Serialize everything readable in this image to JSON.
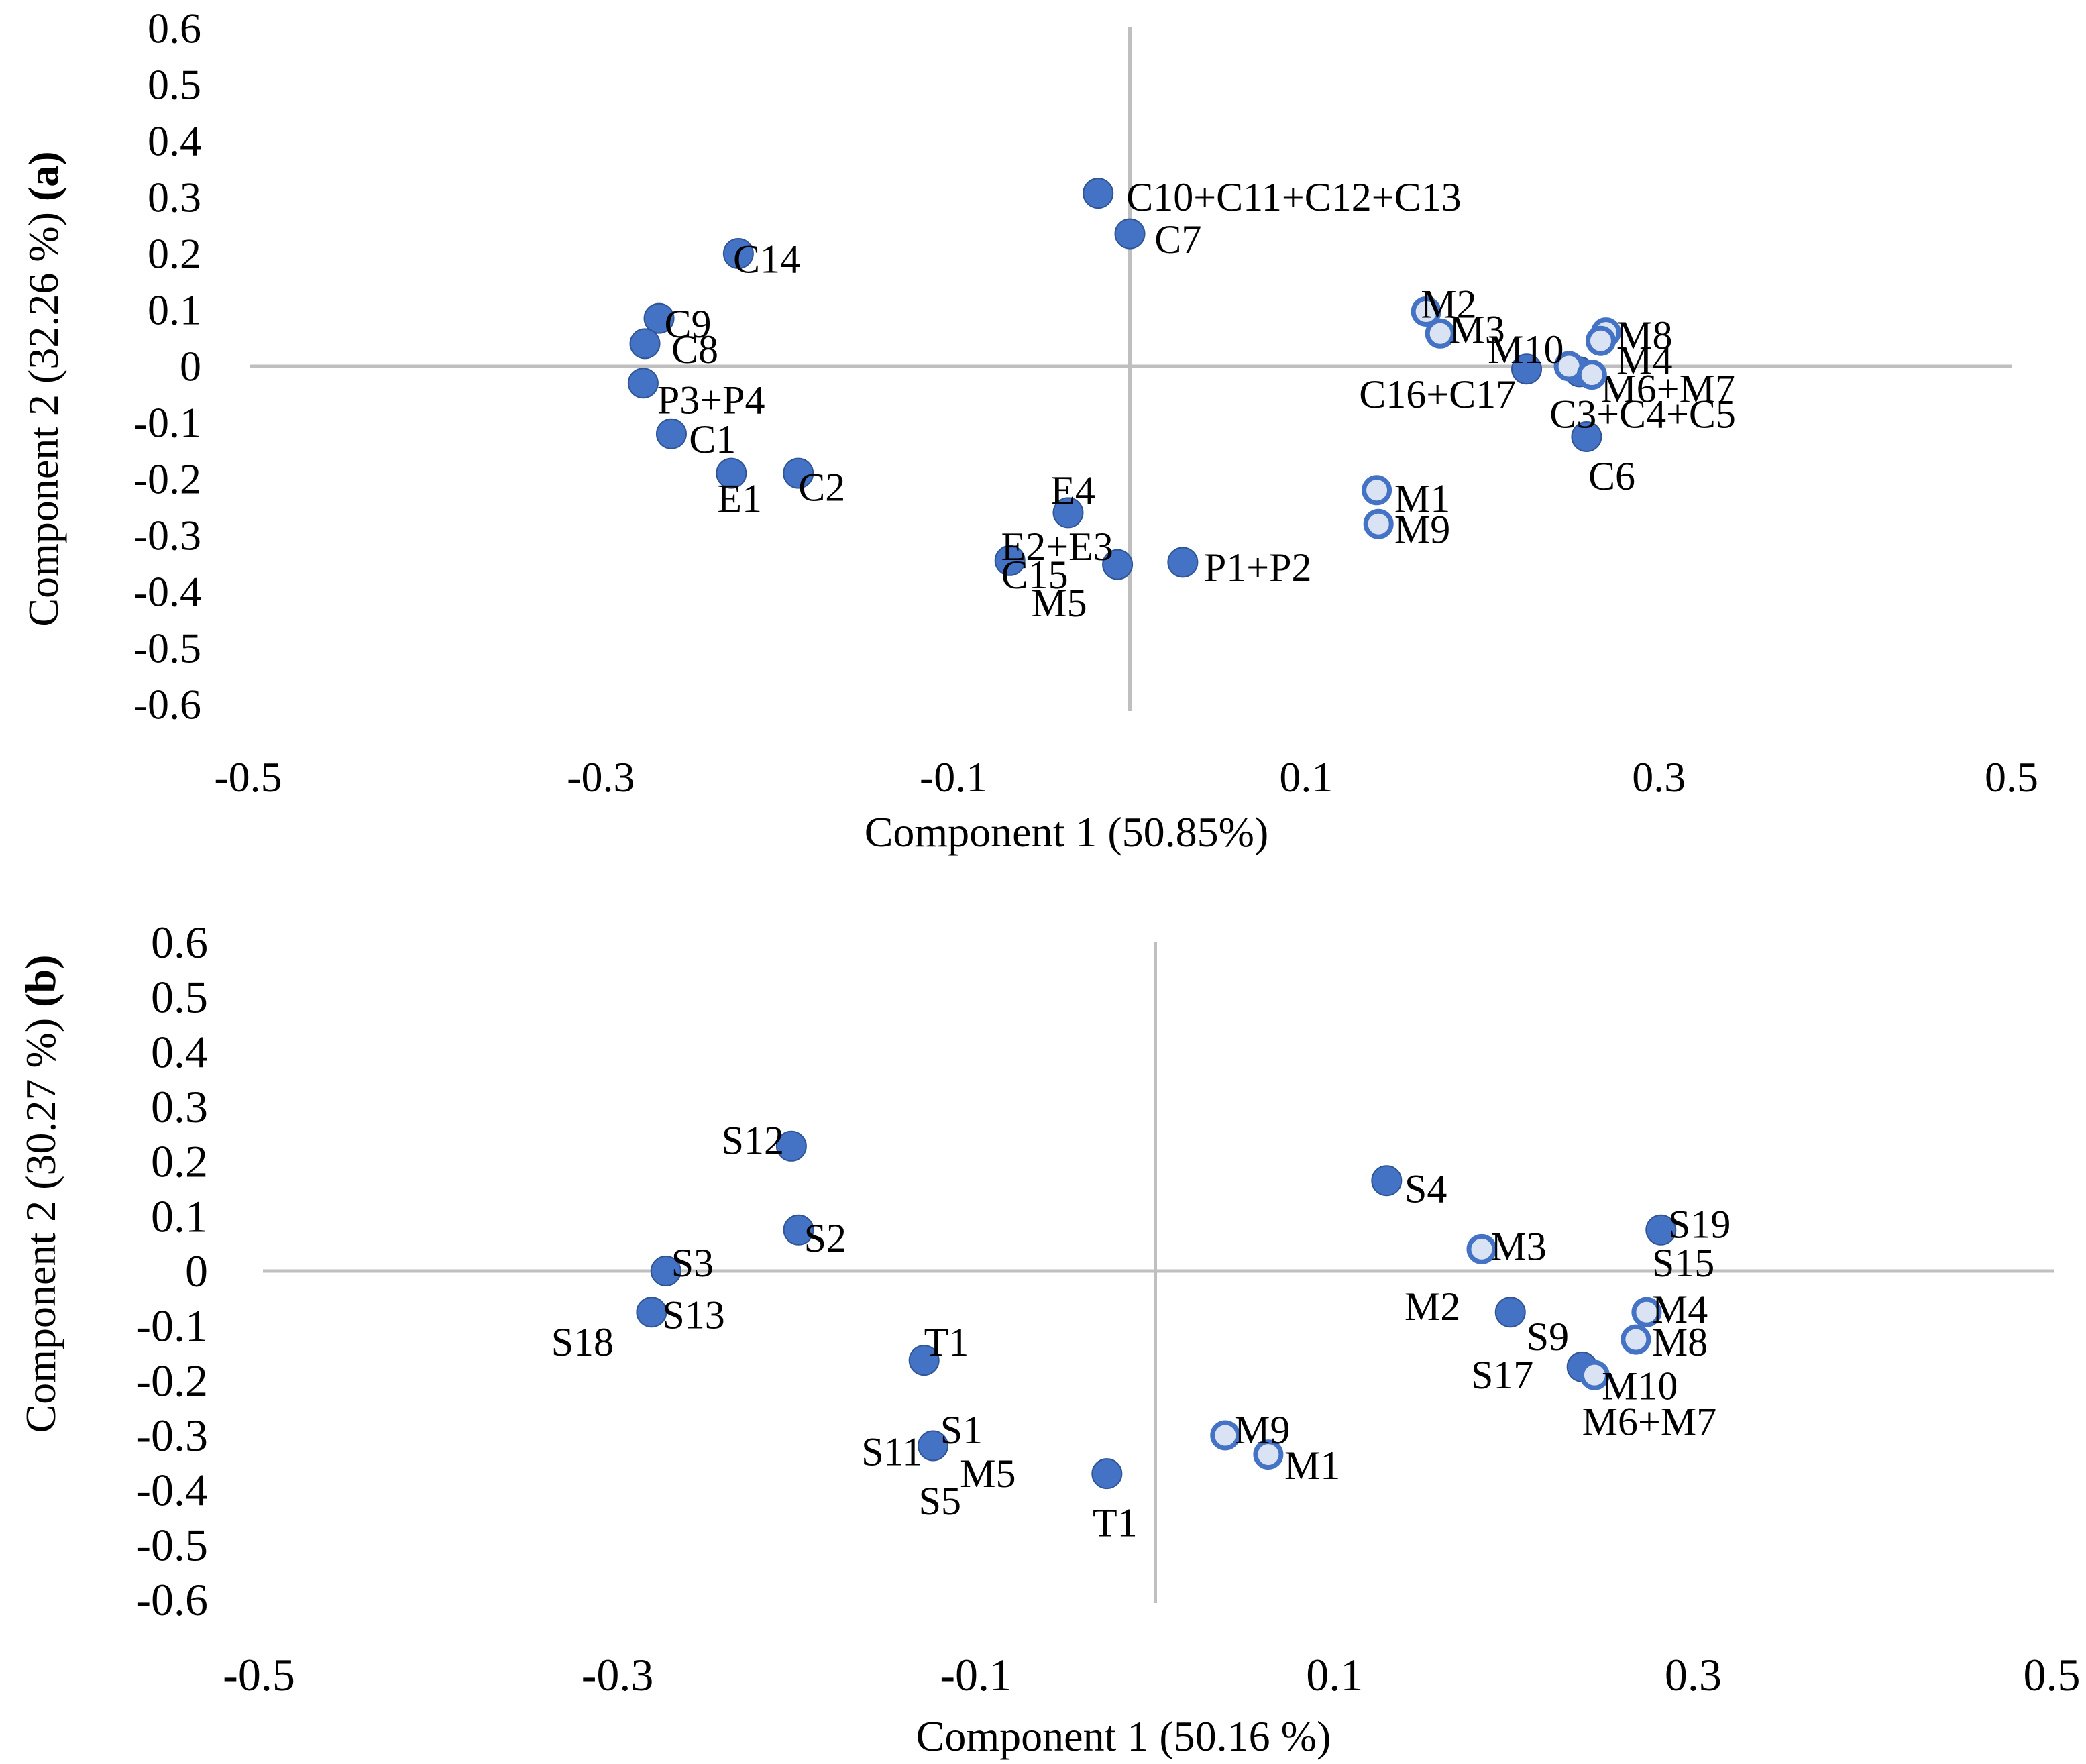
{
  "chart_data": [
    {
      "panel": "a",
      "type": "scatter",
      "panel_label": "(a)",
      "xlabel": "Component 1 (50.85%)",
      "ylabel": "Component 2 (32.26 %)",
      "xlim": [
        -0.5,
        0.5
      ],
      "ylim": [
        -0.6,
        0.6
      ],
      "xticks": [
        "-0.5",
        "-0.3",
        "-0.1",
        "0.1",
        "0.3",
        "0.5"
      ],
      "yticks": [
        "0.6",
        "0.5",
        "0.4",
        "0.3",
        "0.2",
        "0.1",
        "0",
        "-0.1",
        "-0.2",
        "-0.3",
        "-0.4",
        "-0.5",
        "-0.6"
      ],
      "series": [
        {
          "name": "compounds",
          "marker": "filled",
          "points": [
            {
              "x": -0.018,
              "y": 0.307
            },
            {
              "x": 0.0,
              "y": 0.235
            },
            {
              "x": -0.222,
              "y": 0.2
            },
            {
              "x": -0.267,
              "y": 0.085
            },
            {
              "x": -0.275,
              "y": 0.04
            },
            {
              "x": -0.276,
              "y": -0.03
            },
            {
              "x": -0.26,
              "y": -0.12
            },
            {
              "x": -0.226,
              "y": -0.19
            },
            {
              "x": -0.188,
              "y": -0.19
            },
            {
              "x": -0.035,
              "y": -0.26
            },
            {
              "x": -0.068,
              "y": -0.345
            },
            {
              "x": -0.007,
              "y": -0.352
            },
            {
              "x": 0.03,
              "y": -0.348
            },
            {
              "x": 0.225,
              "y": -0.005
            },
            {
              "x": 0.255,
              "y": -0.01
            },
            {
              "x": 0.259,
              "y": -0.125
            }
          ],
          "labels": [
            {
              "text": "C10+C11+C12+C13",
              "x": -0.002,
              "y": 0.3
            },
            {
              "text": "C7",
              "x": 0.014,
              "y": 0.225
            },
            {
              "text": "C14",
              "x": -0.225,
              "y": 0.19
            },
            {
              "text": "C9",
              "x": -0.264,
              "y": 0.075
            },
            {
              "text": "C8",
              "x": -0.26,
              "y": 0.03
            },
            {
              "text": "P3+P4",
              "x": -0.268,
              "y": -0.06
            },
            {
              "text": "C1",
              "x": -0.25,
              "y": -0.13
            },
            {
              "text": "E1",
              "x": -0.234,
              "y": -0.235
            },
            {
              "text": "C2",
              "x": -0.188,
              "y": -0.215
            },
            {
              "text": "E4",
              "x": -0.045,
              "y": -0.22
            },
            {
              "text": "E2+E3",
              "x": -0.073,
              "y": -0.32
            },
            {
              "text": "C15",
              "x": -0.073,
              "y": -0.37
            },
            {
              "text": "M5",
              "x": -0.056,
              "y": -0.42
            },
            {
              "text": "P1+P2",
              "x": 0.042,
              "y": -0.357
            },
            {
              "text": "C16+C17",
              "x": 0.13,
              "y": -0.05
            },
            {
              "text": "M6+M7",
              "x": 0.267,
              "y": -0.04
            },
            {
              "text": "C3+C4+C5",
              "x": 0.238,
              "y": -0.085
            },
            {
              "text": "C6",
              "x": 0.26,
              "y": -0.195
            }
          ]
        },
        {
          "name": "samples",
          "marker": "open",
          "points": [
            {
              "x": 0.168,
              "y": 0.097
            },
            {
              "x": 0.176,
              "y": 0.058
            },
            {
              "x": 0.27,
              "y": 0.06
            },
            {
              "x": 0.267,
              "y": 0.045
            },
            {
              "x": 0.249,
              "y": 0.0
            },
            {
              "x": 0.262,
              "y": -0.015
            },
            {
              "x": 0.14,
              "y": -0.22
            },
            {
              "x": 0.141,
              "y": -0.28
            }
          ],
          "labels": [
            {
              "text": "M2",
              "x": 0.165,
              "y": 0.11
            },
            {
              "text": "M3",
              "x": 0.181,
              "y": 0.065
            },
            {
              "text": "M10",
              "x": 0.203,
              "y": 0.03
            },
            {
              "text": "M8",
              "x": 0.276,
              "y": 0.055
            },
            {
              "text": "M4",
              "x": 0.276,
              "y": 0.01
            },
            {
              "text": "M1",
              "x": 0.15,
              "y": -0.235
            },
            {
              "text": "M9",
              "x": 0.15,
              "y": -0.29
            }
          ]
        }
      ]
    },
    {
      "panel": "b",
      "type": "scatter",
      "panel_label": "(b)",
      "xlabel": "Component 1 (50.16 %)",
      "ylabel": "Component 2 (30.27 %)",
      "xlim": [
        -0.5,
        0.5
      ],
      "ylim": [
        -0.6,
        0.6
      ],
      "xticks": [
        "-0.5",
        "-0.3",
        "-0.1",
        "0.1",
        "0.3",
        "0.5"
      ],
      "yticks": [
        "0.6",
        "0.5",
        "0.4",
        "0.3",
        "0.2",
        "0.1",
        "0",
        "-0.1",
        "-0.2",
        "-0.3",
        "-0.4",
        "-0.5",
        "-0.6"
      ],
      "series": [
        {
          "name": "compounds",
          "marker": "filled",
          "points": [
            {
              "x": -0.203,
              "y": 0.228
            },
            {
              "x": -0.199,
              "y": 0.075
            },
            {
              "x": -0.273,
              "y": 0.0
            },
            {
              "x": -0.281,
              "y": -0.075
            },
            {
              "x": -0.129,
              "y": -0.163
            },
            {
              "x": -0.124,
              "y": -0.319
            },
            {
              "x": -0.027,
              "y": -0.37
            },
            {
              "x": 0.129,
              "y": 0.165
            },
            {
              "x": 0.198,
              "y": -0.075
            },
            {
              "x": 0.238,
              "y": -0.175
            },
            {
              "x": 0.282,
              "y": 0.075
            }
          ],
          "labels": [
            {
              "text": "S12",
              "x": -0.242,
              "y": 0.238
            },
            {
              "text": "S2",
              "x": -0.196,
              "y": 0.06
            },
            {
              "text": "S3",
              "x": -0.27,
              "y": 0.015
            },
            {
              "text": "S13",
              "x": -0.275,
              "y": -0.08
            },
            {
              "text": "S18",
              "x": -0.337,
              "y": -0.13
            },
            {
              "text": "T1",
              "x": -0.129,
              "y": -0.13
            },
            {
              "text": "S1",
              "x": -0.12,
              "y": -0.29
            },
            {
              "text": "S11",
              "x": -0.164,
              "y": -0.33
            },
            {
              "text": "S5",
              "x": -0.132,
              "y": -0.42
            },
            {
              "text": "M5",
              "x": -0.109,
              "y": -0.37
            },
            {
              "text": "T1",
              "x": -0.035,
              "y": -0.46
            },
            {
              "text": "S4",
              "x": 0.139,
              "y": 0.15
            },
            {
              "text": "S19",
              "x": 0.286,
              "y": 0.085
            },
            {
              "text": "S15",
              "x": 0.277,
              "y": 0.015
            },
            {
              "text": "S9",
              "x": 0.207,
              "y": -0.12
            },
            {
              "text": "S17",
              "x": 0.176,
              "y": -0.19
            }
          ]
        },
        {
          "name": "samples",
          "marker": "open",
          "points": [
            {
              "x": 0.182,
              "y": 0.04
            },
            {
              "x": 0.274,
              "y": -0.075
            },
            {
              "x": 0.268,
              "y": -0.125
            },
            {
              "x": 0.245,
              "y": -0.19
            },
            {
              "x": 0.039,
              "y": -0.3
            },
            {
              "x": 0.063,
              "y": -0.335
            }
          ],
          "labels": [
            {
              "text": "M3",
              "x": 0.187,
              "y": 0.045
            },
            {
              "text": "M2",
              "x": 0.139,
              "y": -0.065
            },
            {
              "text": "M4",
              "x": 0.277,
              "y": -0.07
            },
            {
              "text": "M8",
              "x": 0.277,
              "y": -0.13
            },
            {
              "text": "M10",
              "x": 0.249,
              "y": -0.21
            },
            {
              "text": "M6+M7",
              "x": 0.238,
              "y": -0.275
            },
            {
              "text": "M9",
              "x": 0.044,
              "y": -0.29
            },
            {
              "text": "M1",
              "x": 0.072,
              "y": -0.355
            }
          ]
        }
      ]
    }
  ],
  "colors": {
    "marker_fill": "#4472C4",
    "marker_edge": "#2F5597",
    "open_marker_fill": "#DAE3F3",
    "axis_line": "#BFBFBF",
    "text": "#000000"
  }
}
